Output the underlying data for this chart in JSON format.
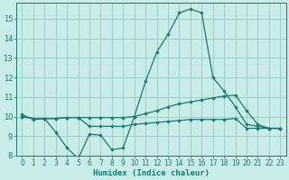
{
  "xlabel": "Humidex (Indice chaleur)",
  "x_values": [
    0,
    1,
    2,
    3,
    4,
    5,
    6,
    7,
    8,
    9,
    10,
    11,
    12,
    13,
    14,
    15,
    16,
    17,
    18,
    19,
    20,
    21,
    22,
    23
  ],
  "line1": [
    10.1,
    9.85,
    9.9,
    9.2,
    8.4,
    7.85,
    9.1,
    9.05,
    8.3,
    8.4,
    10.0,
    11.8,
    13.3,
    14.2,
    15.3,
    15.5,
    15.3,
    12.0,
    11.3,
    10.5,
    9.6,
    9.5,
    9.4,
    9.4
  ],
  "line2": [
    10.0,
    9.9,
    9.9,
    9.9,
    9.95,
    9.95,
    9.95,
    9.95,
    9.95,
    9.95,
    10.0,
    10.15,
    10.3,
    10.5,
    10.65,
    10.75,
    10.85,
    10.95,
    11.05,
    11.1,
    10.3,
    9.6,
    9.4,
    9.4
  ],
  "line3": [
    10.0,
    9.9,
    9.9,
    9.9,
    9.95,
    9.95,
    9.5,
    9.5,
    9.5,
    9.5,
    9.6,
    9.65,
    9.7,
    9.75,
    9.8,
    9.85,
    9.85,
    9.85,
    9.85,
    9.9,
    9.4,
    9.4,
    9.4,
    9.4
  ],
  "line_color": "#1a7a6e",
  "bg_color": "#c8ece8",
  "grid_color": "#a0cec8",
  "ylim": [
    8,
    15.8
  ],
  "yticks": [
    8,
    9,
    10,
    11,
    12,
    13,
    14,
    15
  ],
  "xlim": [
    -0.5,
    23.5
  ]
}
